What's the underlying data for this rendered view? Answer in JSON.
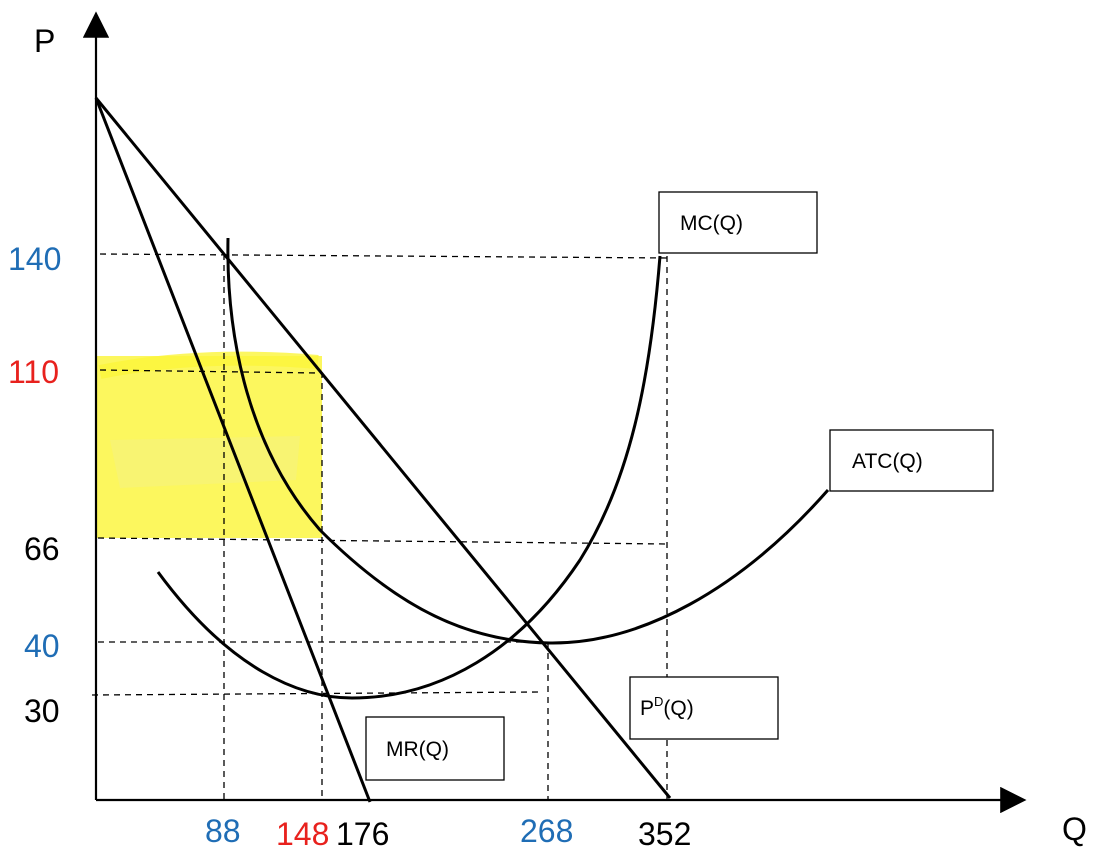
{
  "axes": {
    "y_label": "P",
    "x_label": "Q"
  },
  "price_ticks": [
    {
      "label": "140",
      "color": "#1f6db5"
    },
    {
      "label": "110",
      "color": "#e8211d"
    },
    {
      "label": "66",
      "color": "#000000"
    },
    {
      "label": "40",
      "color": "#1f6db5"
    },
    {
      "label": "30",
      "color": "#000000"
    }
  ],
  "quantity_ticks": [
    {
      "label": "88",
      "color": "#1f6db5"
    },
    {
      "label": "148",
      "color": "#e8211d"
    },
    {
      "label": "176",
      "color": "#000000"
    },
    {
      "label": "268",
      "color": "#1f6db5"
    },
    {
      "label": "352",
      "color": "#000000"
    }
  ],
  "curve_labels": {
    "mc": "MC(Q)",
    "atc": "ATC(Q)",
    "demand_main": "P",
    "demand_sup": "D",
    "demand_suffix": "(Q)",
    "mr": "MR(Q)"
  },
  "colors": {
    "blue": "#1f6db5",
    "red": "#e8211d",
    "highlight": "#fbf53a"
  }
}
